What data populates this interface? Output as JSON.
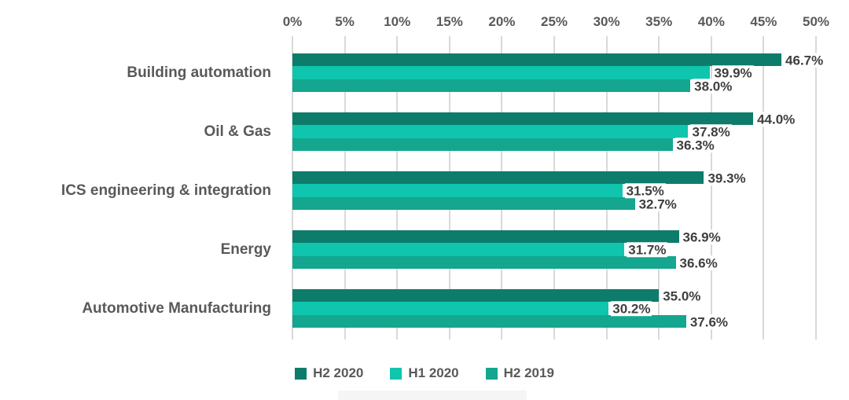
{
  "chart_data": {
    "type": "bar",
    "orientation": "horizontal",
    "title": "",
    "categories": [
      "Building automation",
      "Oil & Gas",
      "ICS engineering & integration",
      "Energy",
      "Automotive Manufacturing"
    ],
    "series": [
      {
        "name": "H2 2020",
        "color": "#0e7c6b",
        "values": [
          46.7,
          44.0,
          39.3,
          36.9,
          35.0
        ]
      },
      {
        "name": "H1 2020",
        "color": "#10c5ad",
        "values": [
          39.9,
          37.8,
          31.5,
          31.7,
          30.2
        ]
      },
      {
        "name": "H2 2019",
        "color": "#14a68e",
        "values": [
          38.0,
          36.3,
          32.7,
          36.6,
          37.6
        ]
      }
    ],
    "value_label_suffix": "%",
    "value_label_decimals": 1,
    "x_axis": {
      "min": 0,
      "max": 50,
      "ticks": [
        "0%",
        "5%",
        "10%",
        "15%",
        "20%",
        "25%",
        "30%",
        "35%",
        "40%",
        "45%",
        "50%"
      ]
    },
    "legend_position": "bottom",
    "grid": "vertical"
  },
  "styles": {
    "background": "#ffffff",
    "grid_color": "#d9d9d9",
    "axis_text_color": "#595959",
    "category_text_color": "#595959",
    "value_text_color": "#3f3f3f",
    "legend_text_color": "#595959"
  }
}
